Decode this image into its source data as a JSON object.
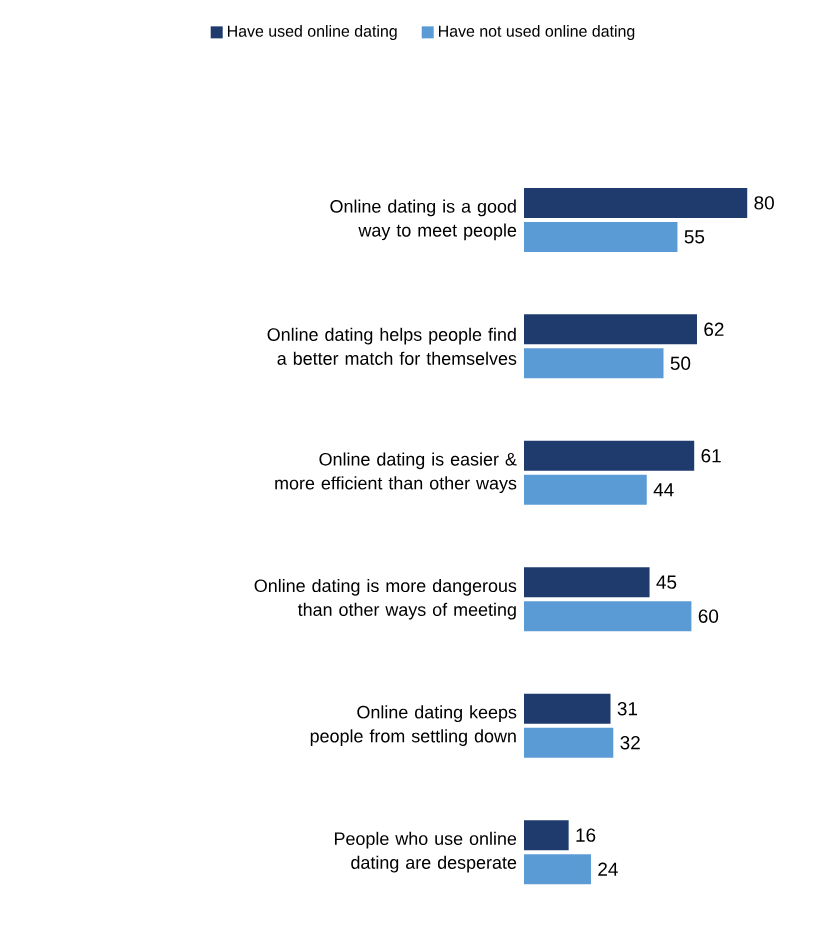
{
  "chart_data": {
    "type": "bar",
    "orientation": "horizontal",
    "categories": [
      "Online dating is a good way to meet people",
      "Online dating helps people find a better match for themselves",
      "Online dating is easier & more efficient than other ways",
      "Online dating is more dangerous than other ways of meeting",
      "Online dating keeps people from settling down",
      "People who use online dating are desperate"
    ],
    "series": [
      {
        "name": "Have used online dating",
        "color": "#1f3b6e",
        "values": [
          80,
          62,
          61,
          45,
          31,
          16
        ]
      },
      {
        "name": "Have not used online dating",
        "color": "#5b9bd5",
        "values": [
          55,
          50,
          44,
          60,
          32,
          24
        ]
      }
    ],
    "data_labels": true,
    "legend": "top"
  }
}
